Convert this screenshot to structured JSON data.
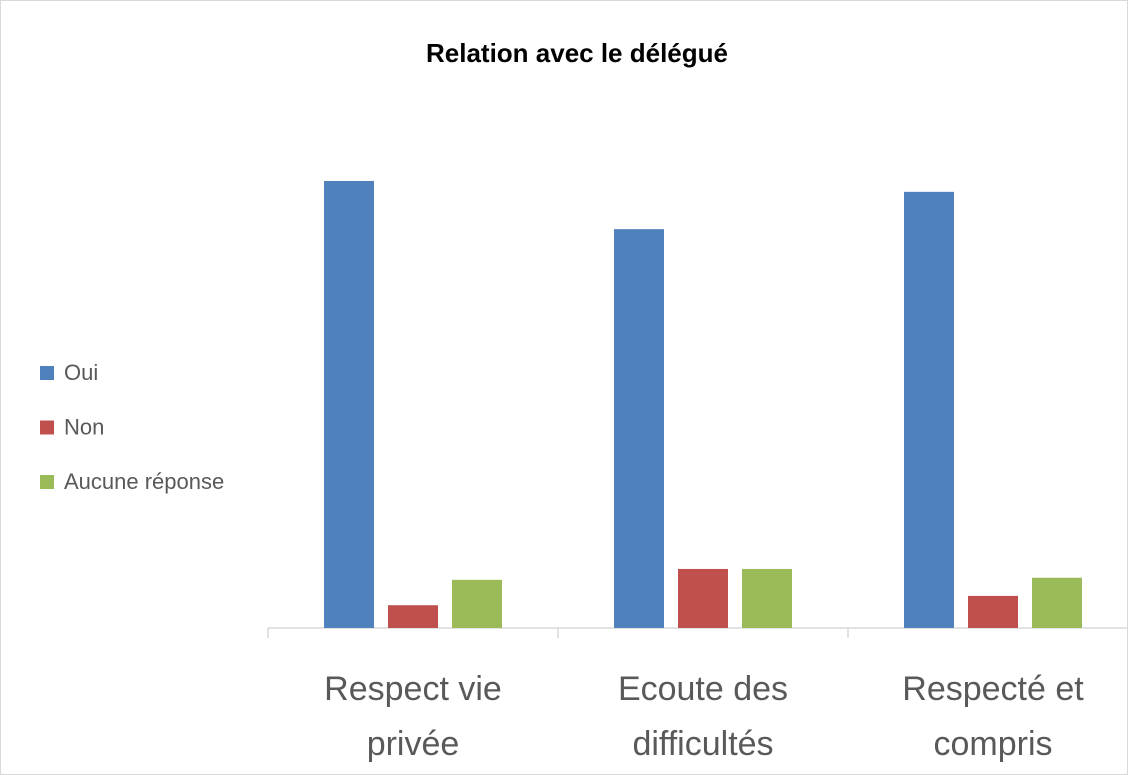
{
  "chart_data": {
    "type": "bar",
    "title": "Relation avec le délégué",
    "categories": [
      "Respect vie privée",
      "Ecoute des difficultés",
      "Respecté et compris"
    ],
    "series": [
      {
        "name": "Oui",
        "color": "#4f81bd",
        "values": [
          86.3,
          77,
          84.2
        ]
      },
      {
        "name": "Non",
        "color": "#c0504d",
        "values": [
          4.4,
          11.4,
          6.2
        ]
      },
      {
        "name": "Aucune réponse",
        "color": "#9bbb59",
        "values": [
          9.3,
          11.4,
          9.7
        ]
      }
    ],
    "ylim": [
      0,
      100
    ],
    "legend": "left"
  }
}
